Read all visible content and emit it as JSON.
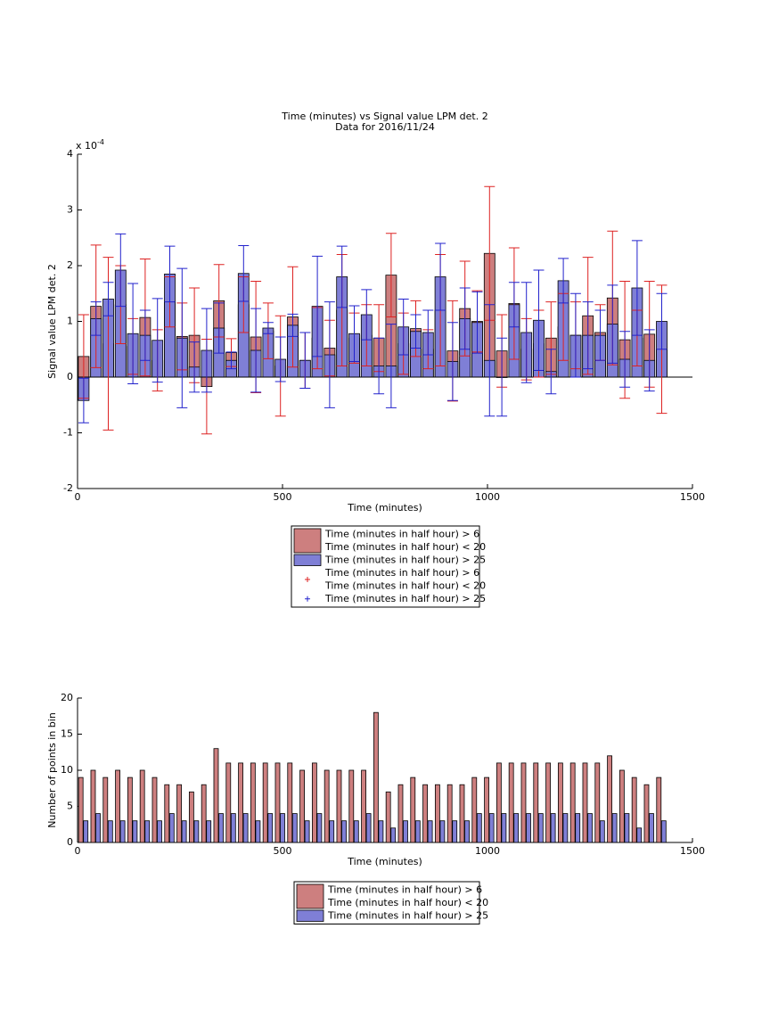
{
  "chart_data": [
    {
      "type": "bar",
      "title": [
        "Time (minutes) vs Signal value LPM det. 2",
        "Data for 2016/11/24"
      ],
      "x_label": "Time (minutes)",
      "y_label": "Signal value LPM det. 2",
      "y_multiplier": {
        "base": "x 10",
        "exponent": "-4"
      },
      "xlim": [
        0,
        1500
      ],
      "xticks": [
        0,
        500,
        1000,
        1500
      ],
      "ylim": [
        -2,
        4
      ],
      "yticks": [
        -2,
        -1,
        0,
        1,
        2,
        3,
        4
      ],
      "legend_markers": true,
      "series": [
        {
          "name": [
            "Time (minutes in half hour) > 6",
            "Time (minutes in half hour) < 20"
          ],
          "color": "#cd7f7f",
          "error_color": "#dd2222",
          "x": [
            15,
            45,
            75,
            105,
            135,
            165,
            195,
            225,
            255,
            285,
            315,
            345,
            375,
            405,
            435,
            465,
            495,
            525,
            555,
            585,
            615,
            645,
            675,
            705,
            735,
            765,
            795,
            825,
            855,
            885,
            915,
            945,
            975,
            1005,
            1035,
            1065,
            1095,
            1125,
            1155,
            1185,
            1215,
            1245,
            1275,
            1305,
            1335,
            1365,
            1395,
            1425
          ],
          "values": [
            0.37,
            1.27,
            0.6,
            1.3,
            0.55,
            1.07,
            0.3,
            1.35,
            0.73,
            0.75,
            -0.17,
            1.37,
            0.44,
            1.3,
            0.72,
            0.83,
            0.2,
            1.08,
            0.3,
            0.7,
            0.52,
            1.2,
            0.7,
            0.75,
            0.7,
            1.83,
            0.6,
            0.87,
            0.5,
            1.2,
            0.47,
            1.23,
            1.0,
            2.22,
            0.47,
            1.32,
            0.5,
            0.6,
            0.7,
            0.9,
            0.75,
            1.1,
            0.8,
            1.42,
            0.67,
            0.7,
            0.77,
            0.5
          ],
          "errors": [
            0.75,
            1.1,
            1.55,
            0.7,
            0.5,
            1.05,
            0.55,
            0.45,
            0.6,
            0.85,
            0.85,
            0.65,
            0.25,
            0.5,
            1.0,
            0.5,
            0.9,
            0.9,
            0.5,
            0.55,
            0.5,
            1.0,
            0.45,
            0.55,
            0.6,
            0.75,
            0.55,
            0.5,
            0.35,
            1.0,
            0.9,
            0.85,
            0.55,
            1.2,
            0.65,
            1.0,
            0.55,
            0.6,
            0.65,
            0.6,
            0.6,
            1.05,
            0.5,
            1.2,
            1.05,
            0.5,
            0.95,
            1.15
          ]
        },
        {
          "name": [
            "Time (minutes in half hour) > 25"
          ],
          "color": "#7f7fd6",
          "error_color": "#2222cc",
          "x": [
            15,
            45,
            75,
            105,
            135,
            165,
            195,
            225,
            255,
            285,
            315,
            345,
            375,
            405,
            435,
            465,
            495,
            525,
            555,
            585,
            615,
            645,
            675,
            705,
            735,
            765,
            795,
            825,
            855,
            885,
            915,
            945,
            975,
            1005,
            1035,
            1065,
            1095,
            1125,
            1155,
            1185,
            1215,
            1245,
            1275,
            1305,
            1335,
            1365,
            1395,
            1425
          ],
          "values": [
            -0.42,
            1.05,
            1.4,
            1.92,
            0.78,
            0.75,
            0.66,
            1.85,
            0.7,
            0.18,
            0.48,
            0.88,
            0.3,
            1.86,
            0.48,
            0.88,
            0.32,
            0.93,
            0.3,
            1.27,
            0.4,
            1.8,
            0.78,
            1.12,
            0.2,
            0.2,
            0.9,
            0.82,
            0.8,
            1.8,
            0.28,
            1.05,
            0.98,
            0.3,
            0.0,
            1.3,
            0.8,
            1.02,
            0.1,
            1.73,
            0.75,
            0.75,
            0.75,
            0.95,
            0.32,
            1.6,
            0.3,
            1.0
          ],
          "errors": [
            0.4,
            0.3,
            0.3,
            0.65,
            0.9,
            0.45,
            0.75,
            0.5,
            1.25,
            0.45,
            0.75,
            0.45,
            0.15,
            0.5,
            0.75,
            0.1,
            0.4,
            0.2,
            0.5,
            0.9,
            0.95,
            0.55,
            0.5,
            0.45,
            0.5,
            0.75,
            0.5,
            0.3,
            0.4,
            0.6,
            0.7,
            0.55,
            0.55,
            1.0,
            0.7,
            0.4,
            0.9,
            0.9,
            0.4,
            0.4,
            0.75,
            0.6,
            0.45,
            0.7,
            0.5,
            0.85,
            0.55,
            0.5
          ]
        }
      ]
    },
    {
      "type": "bar",
      "x_label": "Time (minutes)",
      "y_label": "Number of points in bin",
      "xlim": [
        0,
        1500
      ],
      "xticks": [
        0,
        500,
        1000,
        1500
      ],
      "ylim": [
        0,
        20
      ],
      "yticks": [
        0,
        5,
        10,
        15,
        20
      ],
      "series": [
        {
          "name": [
            "Time (minutes in half hour) > 6",
            "Time (minutes in half hour) < 20"
          ],
          "color": "#cd7f7f",
          "x": [
            8,
            38,
            68,
            98,
            128,
            158,
            188,
            218,
            248,
            278,
            308,
            338,
            368,
            398,
            428,
            458,
            488,
            518,
            548,
            578,
            608,
            638,
            668,
            698,
            728,
            758,
            788,
            818,
            848,
            878,
            908,
            938,
            968,
            998,
            1028,
            1058,
            1088,
            1118,
            1148,
            1178,
            1208,
            1238,
            1268,
            1298,
            1328,
            1358,
            1388,
            1418
          ],
          "values": [
            9,
            10,
            9,
            10,
            9,
            10,
            9,
            8,
            8,
            7,
            8,
            13,
            11,
            11,
            11,
            11,
            11,
            11,
            10,
            11,
            10,
            10,
            10,
            10,
            18,
            7,
            8,
            9,
            8,
            8,
            8,
            8,
            9,
            9,
            11,
            11,
            11,
            11,
            11,
            11,
            11,
            11,
            11,
            12,
            10,
            9,
            8,
            9
          ]
        },
        {
          "name": [
            "Time (minutes in half hour) > 25"
          ],
          "color": "#7f7fd6",
          "x": [
            20,
            50,
            80,
            110,
            140,
            170,
            200,
            230,
            260,
            290,
            320,
            350,
            380,
            410,
            440,
            470,
            500,
            530,
            560,
            590,
            620,
            650,
            680,
            710,
            740,
            770,
            800,
            830,
            860,
            890,
            920,
            950,
            980,
            1010,
            1040,
            1070,
            1100,
            1130,
            1160,
            1190,
            1220,
            1250,
            1280,
            1310,
            1340,
            1370,
            1400,
            1430
          ],
          "values": [
            3,
            4,
            3,
            3,
            3,
            3,
            3,
            4,
            3,
            3,
            3,
            4,
            4,
            4,
            3,
            4,
            4,
            4,
            3,
            4,
            3,
            3,
            3,
            4,
            3,
            2,
            3,
            3,
            3,
            3,
            3,
            3,
            4,
            4,
            4,
            4,
            4,
            4,
            4,
            4,
            4,
            4,
            3,
            4,
            4,
            2,
            4,
            3
          ]
        }
      ]
    }
  ]
}
